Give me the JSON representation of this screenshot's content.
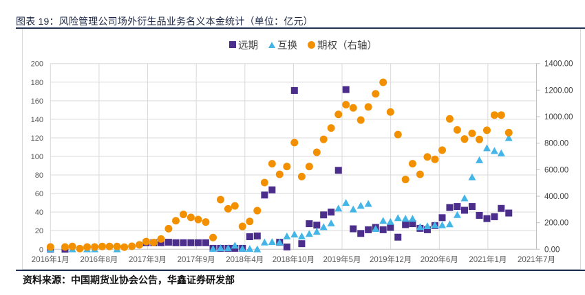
{
  "title": "图表 19：风险管理公司场外衍生品业务名义本金统计（单位：亿元）",
  "source": "资料来源：中国期货业协会公告，华鑫证券研发部",
  "colors": {
    "forward": "#4b2d8b",
    "swap": "#43b5e7",
    "option": "#f39000",
    "rule": "#1f2f52"
  },
  "chart_data": {
    "type": "scatter",
    "title": "",
    "xlabel": "",
    "ylabel_left": "",
    "ylabel_right": "",
    "grid": true,
    "legend_position": "top-center",
    "xlim": [
      "2016-01-31",
      "2021-07-23"
    ],
    "x_tick_labels": [
      "2016年1月",
      "2016年8月",
      "2017年3月",
      "2017年9月",
      "2018年4月",
      "2018年10月",
      "2019年5月",
      "2019年12月",
      "2020年6月",
      "2021年1月",
      "2021年7月"
    ],
    "ylim_left": [
      0,
      200
    ],
    "y_left_tick_labels": [
      "0",
      "20",
      "40",
      "60",
      "80",
      "100",
      "120",
      "140",
      "160",
      "180",
      "200"
    ],
    "ylim_right": [
      0,
      1400
    ],
    "y_right_tick_labels": [
      "0.00",
      "200.00",
      "400.00",
      "600.00",
      "800.00",
      "1000.00",
      "1200.00",
      "1400.00"
    ],
    "x": [
      "2016-01",
      "2016-03",
      "2016-04",
      "2016-05",
      "2016-06",
      "2016-07",
      "2016-08",
      "2016-09",
      "2016-10",
      "2016-11",
      "2016-12",
      "2017-01",
      "2017-02",
      "2017-03",
      "2017-04",
      "2017-05",
      "2017-06",
      "2017-07",
      "2017-08",
      "2017-09",
      "2017-10",
      "2017-11",
      "2017-12",
      "2018-01",
      "2018-02",
      "2018-03",
      "2018-04",
      "2018-05",
      "2018-06",
      "2018-07",
      "2018-08",
      "2018-09",
      "2018-10",
      "2018-11",
      "2018-12",
      "2019-01",
      "2019-02",
      "2019-03",
      "2019-04",
      "2019-05",
      "2019-06",
      "2019-07",
      "2019-08",
      "2019-09",
      "2019-10",
      "2019-11",
      "2019-12",
      "2020-01",
      "2020-02",
      "2020-03",
      "2020-04",
      "2020-05",
      "2020-06",
      "2020-07",
      "2020-08",
      "2020-09",
      "2020-10",
      "2020-11",
      "2020-12",
      "2021-01",
      "2021-02",
      "2021-03"
    ],
    "series": [
      {
        "name": "远期",
        "axis": "left",
        "marker": "square",
        "values": [
          0,
          0,
          null,
          null,
          null,
          null,
          null,
          null,
          null,
          null,
          null,
          null,
          7,
          7,
          7,
          7.5,
          7,
          7,
          7,
          7,
          7,
          1,
          1,
          1,
          1,
          1,
          13.5,
          14.3,
          58.4,
          64,
          7.5,
          2.4,
          171,
          6,
          27.5,
          26,
          37,
          40,
          85,
          172,
          22,
          17,
          21,
          23.5,
          21,
          23.5,
          13,
          26.5,
          27.5,
          22.5,
          21,
          25.5,
          34,
          45,
          46,
          42,
          46,
          36.5,
          33,
          35,
          44,
          39
        ]
      },
      {
        "name": "互换",
        "axis": "left",
        "marker": "triangle",
        "values": [
          0,
          null,
          0,
          null,
          0,
          0,
          null,
          null,
          0,
          null,
          null,
          null,
          null,
          null,
          null,
          null,
          null,
          null,
          null,
          null,
          null,
          0.5,
          1.2,
          1.2,
          4,
          0.7,
          0.5,
          0,
          7.4,
          7.9,
          7.4,
          14,
          16,
          14,
          16.7,
          19,
          24,
          28,
          44,
          50,
          43,
          47,
          49,
          22,
          30.7,
          29.6,
          33.7,
          33,
          33,
          24,
          25,
          26,
          26,
          27,
          37,
          55,
          77.6,
          96,
          109,
          106,
          103.5,
          120
        ]
      },
      {
        "name": "期权（右轴）",
        "axis": "right",
        "marker": "circle",
        "values": [
          17,
          17,
          21,
          5,
          17,
          17,
          21,
          21,
          21,
          16,
          22,
          33,
          58,
          51,
          77,
          155,
          215,
          263,
          240,
          224,
          205,
          88,
          374,
          305,
          327,
          172,
          210,
          291,
          503,
          645,
          565,
          624,
          804,
          548,
          624,
          731,
          829,
          914,
          1017,
          1090,
          1066,
          974,
          1073,
          1172,
          1259,
          1035,
          865,
          526,
          645,
          565,
          696,
          678,
          747,
          983,
          900,
          831,
          874,
          828,
          897,
          1012,
          1012,
          879
        ]
      }
    ]
  }
}
